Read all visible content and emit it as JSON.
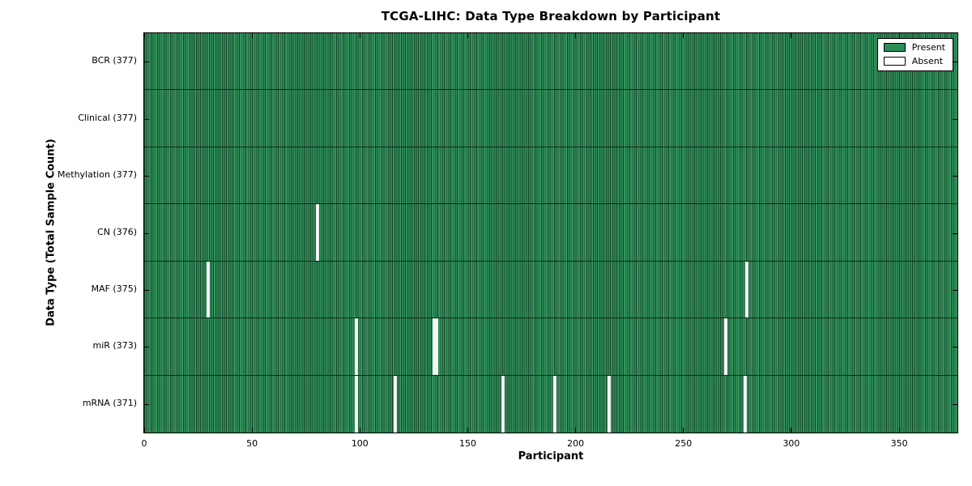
{
  "chart_data": {
    "type": "heatmap",
    "title": "TCGA-LIHC: Data Type Breakdown by Participant",
    "xlabel": "Participant",
    "ylabel": "Data Type (Total Sample Count)",
    "x_ticks": [
      0,
      50,
      100,
      150,
      200,
      250,
      300,
      350
    ],
    "x_range": [
      0,
      377
    ],
    "total_participants": 377,
    "grid": false,
    "legend_position": "upper right",
    "legend": [
      {
        "label": "Present",
        "color": "#2e8b57"
      },
      {
        "label": "Absent",
        "color": "#ffffff"
      }
    ],
    "colors": {
      "present_fill": "#2e8b57",
      "bar_edge": "#16482b",
      "absent_fill": "#ffffff",
      "axes_edge": "#000000",
      "background": "#ffffff"
    },
    "rows": [
      {
        "data_type": "BCR",
        "label": "BCR (377)",
        "present_count": 377,
        "absent_count": 0,
        "absent_participants": []
      },
      {
        "data_type": "Clinical",
        "label": "Clinical (377)",
        "present_count": 377,
        "absent_count": 0,
        "absent_participants": []
      },
      {
        "data_type": "Methylation",
        "label": "Methylation (377)",
        "present_count": 377,
        "absent_count": 0,
        "absent_participants": []
      },
      {
        "data_type": "CN",
        "label": "CN (376)",
        "present_count": 376,
        "absent_count": 1,
        "absent_participants": [
          80
        ]
      },
      {
        "data_type": "MAF",
        "label": "MAF (375)",
        "present_count": 375,
        "absent_count": 2,
        "absent_participants": [
          29,
          279
        ]
      },
      {
        "data_type": "miR",
        "label": "miR (373)",
        "present_count": 373,
        "absent_count": 4,
        "absent_participants": [
          98,
          134,
          135,
          269
        ]
      },
      {
        "data_type": "mRNA",
        "label": "mRNA (371)",
        "present_count": 371,
        "absent_count": 6,
        "absent_participants": [
          98,
          116,
          166,
          190,
          215,
          278
        ]
      }
    ]
  }
}
